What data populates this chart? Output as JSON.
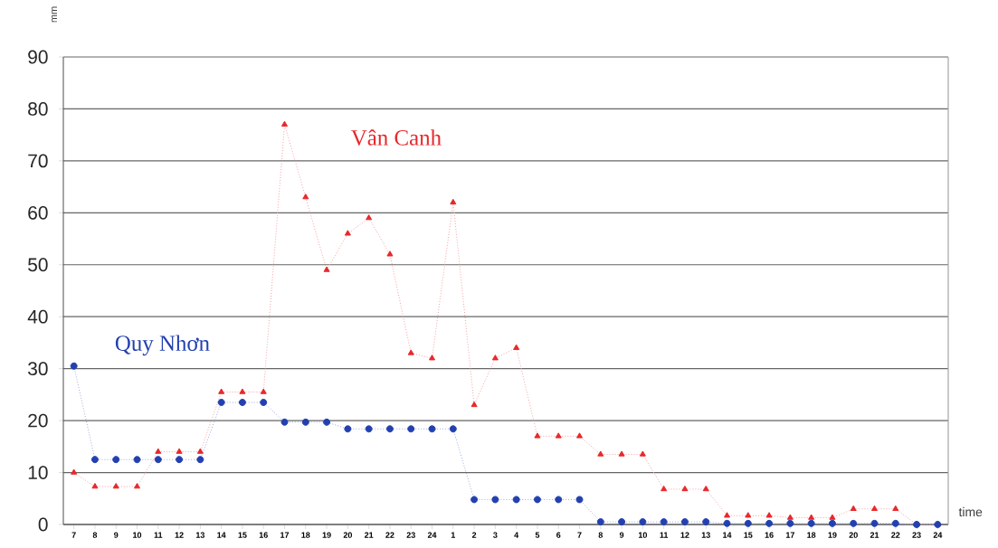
{
  "chart_data": {
    "type": "line",
    "xlabel": "time",
    "ylabel": "mm",
    "categories": [
      "7",
      "8",
      "9",
      "10",
      "11",
      "12",
      "13",
      "14",
      "15",
      "16",
      "17",
      "18",
      "19",
      "20",
      "21",
      "22",
      "23",
      "24",
      "1",
      "2",
      "3",
      "4",
      "5",
      "6",
      "7",
      "8",
      "9",
      "10",
      "11",
      "12",
      "13",
      "14",
      "15",
      "16",
      "17",
      "18",
      "19",
      "20",
      "21",
      "22",
      "23",
      "24"
    ],
    "series": [
      {
        "name": "Vân Canh",
        "color": "#e8282b",
        "marker": "triangle",
        "values": [
          10,
          7.3,
          7.3,
          7.3,
          14,
          14,
          14,
          25.5,
          25.5,
          25.5,
          77,
          63,
          49,
          56,
          59,
          52,
          33,
          32,
          62,
          23,
          32,
          34,
          17,
          17,
          17,
          13.5,
          13.5,
          13.5,
          6.8,
          6.8,
          6.8,
          1.7,
          1.7,
          1.7,
          1.3,
          1.3,
          1.3,
          3,
          3,
          3,
          0,
          0
        ]
      },
      {
        "name": "Quy Nhơn",
        "color": "#2340b0",
        "marker": "circle",
        "values": [
          30.5,
          12.5,
          12.5,
          12.5,
          12.5,
          12.5,
          12.5,
          23.5,
          23.5,
          23.5,
          19.7,
          19.7,
          19.7,
          18.4,
          18.4,
          18.4,
          18.4,
          18.4,
          18.4,
          4.8,
          4.8,
          4.8,
          4.8,
          4.8,
          4.8,
          0.5,
          0.5,
          0.5,
          0.5,
          0.5,
          0.5,
          0.2,
          0.2,
          0.2,
          0.2,
          0.2,
          0.2,
          0.2,
          0.2,
          0.2,
          0,
          0
        ]
      }
    ],
    "ylim": [
      0,
      90
    ],
    "yticks": [
      0,
      10,
      20,
      30,
      40,
      50,
      60,
      70,
      80,
      90
    ],
    "grid": "y",
    "line_style": "dotted"
  }
}
